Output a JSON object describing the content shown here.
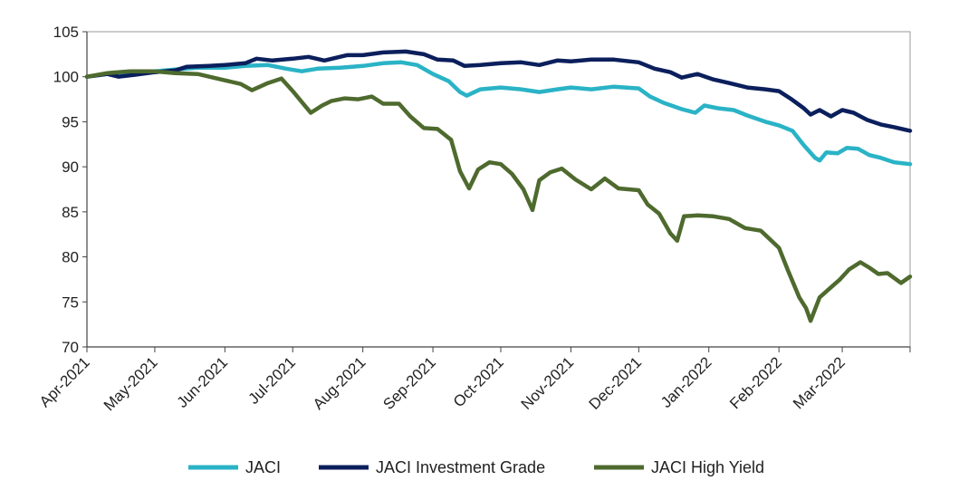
{
  "chart_data": {
    "type": "line",
    "title": "",
    "xlabel": "",
    "ylabel": "",
    "ylim": [
      70,
      105
    ],
    "yticks": [
      70,
      75,
      80,
      85,
      90,
      95,
      100,
      105
    ],
    "x_tick_labels": [
      "Apr-2021",
      "May-2021",
      "Jun-2021",
      "Jul-2021",
      "Aug-2021",
      "Sep-2021",
      "Oct-2021",
      "Nov-2021",
      "Dec-2021",
      "Jan-2022",
      "Feb-2022",
      "Mar-2022"
    ],
    "x_tick_dates": [
      "2021-04-01",
      "2021-05-01",
      "2021-06-01",
      "2021-07-01",
      "2021-08-01",
      "2021-09-01",
      "2021-10-01",
      "2021-11-01",
      "2021-12-01",
      "2022-01-01",
      "2022-02-01",
      "2022-03-01"
    ],
    "xlim": [
      "2021-04-01",
      "2022-03-31"
    ],
    "grid": false,
    "legend_position": "bottom",
    "series": [
      {
        "name": "JACI",
        "color": "#2ab3c6",
        "points": [
          [
            "2021-04-01",
            100.0
          ],
          [
            "2021-04-10",
            100.3
          ],
          [
            "2021-04-20",
            100.5
          ],
          [
            "2021-05-01",
            100.6
          ],
          [
            "2021-05-10",
            100.8
          ],
          [
            "2021-05-20",
            101.0
          ],
          [
            "2021-06-01",
            101.0
          ],
          [
            "2021-06-10",
            101.2
          ],
          [
            "2021-06-20",
            101.3
          ],
          [
            "2021-06-28",
            100.9
          ],
          [
            "2021-07-05",
            100.6
          ],
          [
            "2021-07-12",
            100.9
          ],
          [
            "2021-07-22",
            101.0
          ],
          [
            "2021-08-01",
            101.2
          ],
          [
            "2021-08-10",
            101.5
          ],
          [
            "2021-08-18",
            101.6
          ],
          [
            "2021-08-25",
            101.3
          ],
          [
            "2021-09-01",
            100.3
          ],
          [
            "2021-09-08",
            99.5
          ],
          [
            "2021-09-13",
            98.3
          ],
          [
            "2021-09-16",
            97.9
          ],
          [
            "2021-09-22",
            98.6
          ],
          [
            "2021-10-01",
            98.8
          ],
          [
            "2021-10-10",
            98.6
          ],
          [
            "2021-10-18",
            98.3
          ],
          [
            "2021-10-26",
            98.6
          ],
          [
            "2021-11-01",
            98.8
          ],
          [
            "2021-11-10",
            98.6
          ],
          [
            "2021-11-20",
            98.9
          ],
          [
            "2021-12-01",
            98.7
          ],
          [
            "2021-12-06",
            97.8
          ],
          [
            "2021-12-12",
            97.1
          ],
          [
            "2021-12-20",
            96.4
          ],
          [
            "2021-12-26",
            96.0
          ],
          [
            "2021-12-30",
            96.8
          ],
          [
            "2022-01-05",
            96.5
          ],
          [
            "2022-01-12",
            96.3
          ],
          [
            "2022-01-18",
            95.7
          ],
          [
            "2022-01-26",
            95.0
          ],
          [
            "2022-02-01",
            94.6
          ],
          [
            "2022-02-07",
            94.0
          ],
          [
            "2022-02-12",
            92.4
          ],
          [
            "2022-02-17",
            91.0
          ],
          [
            "2022-02-19",
            90.7
          ],
          [
            "2022-02-22",
            91.6
          ],
          [
            "2022-02-27",
            91.5
          ],
          [
            "2022-03-03",
            92.1
          ],
          [
            "2022-03-08",
            92.0
          ],
          [
            "2022-03-13",
            91.3
          ],
          [
            "2022-03-18",
            91.0
          ],
          [
            "2022-03-24",
            90.5
          ],
          [
            "2022-03-31",
            90.3
          ]
        ]
      },
      {
        "name": "JACI Investment Grade",
        "color": "#0b1f5c",
        "points": [
          [
            "2021-04-01",
            100.0
          ],
          [
            "2021-04-10",
            100.3
          ],
          [
            "2021-04-15",
            100.0
          ],
          [
            "2021-04-22",
            100.2
          ],
          [
            "2021-05-01",
            100.5
          ],
          [
            "2021-05-10",
            100.7
          ],
          [
            "2021-05-15",
            101.1
          ],
          [
            "2021-05-25",
            101.2
          ],
          [
            "2021-06-01",
            101.3
          ],
          [
            "2021-06-10",
            101.5
          ],
          [
            "2021-06-15",
            102.0
          ],
          [
            "2021-06-22",
            101.8
          ],
          [
            "2021-07-01",
            102.0
          ],
          [
            "2021-07-08",
            102.2
          ],
          [
            "2021-07-15",
            101.8
          ],
          [
            "2021-07-25",
            102.4
          ],
          [
            "2021-08-01",
            102.4
          ],
          [
            "2021-08-10",
            102.7
          ],
          [
            "2021-08-20",
            102.8
          ],
          [
            "2021-08-28",
            102.5
          ],
          [
            "2021-09-03",
            101.9
          ],
          [
            "2021-09-10",
            101.8
          ],
          [
            "2021-09-15",
            101.2
          ],
          [
            "2021-09-22",
            101.3
          ],
          [
            "2021-10-01",
            101.5
          ],
          [
            "2021-10-10",
            101.6
          ],
          [
            "2021-10-18",
            101.3
          ],
          [
            "2021-10-26",
            101.8
          ],
          [
            "2021-11-01",
            101.7
          ],
          [
            "2021-11-10",
            101.9
          ],
          [
            "2021-11-20",
            101.9
          ],
          [
            "2021-12-01",
            101.6
          ],
          [
            "2021-12-08",
            100.9
          ],
          [
            "2021-12-15",
            100.5
          ],
          [
            "2021-12-20",
            99.9
          ],
          [
            "2021-12-27",
            100.3
          ],
          [
            "2022-01-03",
            99.7
          ],
          [
            "2022-01-10",
            99.3
          ],
          [
            "2022-01-18",
            98.8
          ],
          [
            "2022-01-26",
            98.6
          ],
          [
            "2022-02-01",
            98.4
          ],
          [
            "2022-02-06",
            97.6
          ],
          [
            "2022-02-12",
            96.5
          ],
          [
            "2022-02-15",
            95.8
          ],
          [
            "2022-02-19",
            96.3
          ],
          [
            "2022-02-24",
            95.6
          ],
          [
            "2022-03-01",
            96.3
          ],
          [
            "2022-03-06",
            96.0
          ],
          [
            "2022-03-12",
            95.2
          ],
          [
            "2022-03-18",
            94.7
          ],
          [
            "2022-03-24",
            94.4
          ],
          [
            "2022-03-31",
            94.0
          ]
        ]
      },
      {
        "name": "JACI High Yield",
        "color": "#4e6a2e",
        "points": [
          [
            "2021-04-01",
            100.0
          ],
          [
            "2021-04-10",
            100.4
          ],
          [
            "2021-04-20",
            100.6
          ],
          [
            "2021-05-01",
            100.6
          ],
          [
            "2021-05-10",
            100.4
          ],
          [
            "2021-05-20",
            100.3
          ],
          [
            "2021-06-01",
            99.6
          ],
          [
            "2021-06-08",
            99.2
          ],
          [
            "2021-06-13",
            98.5
          ],
          [
            "2021-06-20",
            99.3
          ],
          [
            "2021-06-26",
            99.8
          ],
          [
            "2021-07-01",
            98.4
          ],
          [
            "2021-07-05",
            97.2
          ],
          [
            "2021-07-09",
            96.0
          ],
          [
            "2021-07-14",
            96.8
          ],
          [
            "2021-07-18",
            97.3
          ],
          [
            "2021-07-24",
            97.6
          ],
          [
            "2021-07-30",
            97.5
          ],
          [
            "2021-08-05",
            97.8
          ],
          [
            "2021-08-10",
            97.0
          ],
          [
            "2021-08-17",
            97.0
          ],
          [
            "2021-08-22",
            95.6
          ],
          [
            "2021-08-28",
            94.3
          ],
          [
            "2021-09-03",
            94.2
          ],
          [
            "2021-09-09",
            93.0
          ],
          [
            "2021-09-13",
            89.5
          ],
          [
            "2021-09-17",
            87.6
          ],
          [
            "2021-09-21",
            89.7
          ],
          [
            "2021-09-26",
            90.5
          ],
          [
            "2021-10-01",
            90.3
          ],
          [
            "2021-10-06",
            89.2
          ],
          [
            "2021-10-11",
            87.5
          ],
          [
            "2021-10-15",
            85.2
          ],
          [
            "2021-10-18",
            88.5
          ],
          [
            "2021-10-23",
            89.4
          ],
          [
            "2021-10-28",
            89.8
          ],
          [
            "2021-11-03",
            88.6
          ],
          [
            "2021-11-10",
            87.5
          ],
          [
            "2021-11-16",
            88.7
          ],
          [
            "2021-11-22",
            87.6
          ],
          [
            "2021-12-01",
            87.4
          ],
          [
            "2021-12-05",
            85.8
          ],
          [
            "2021-12-10",
            84.8
          ],
          [
            "2021-12-15",
            82.6
          ],
          [
            "2021-12-18",
            81.8
          ],
          [
            "2021-12-21",
            84.5
          ],
          [
            "2021-12-27",
            84.6
          ],
          [
            "2022-01-03",
            84.5
          ],
          [
            "2022-01-10",
            84.2
          ],
          [
            "2022-01-17",
            83.2
          ],
          [
            "2022-01-24",
            82.9
          ],
          [
            "2022-02-01",
            81.0
          ],
          [
            "2022-02-05",
            78.5
          ],
          [
            "2022-02-10",
            75.5
          ],
          [
            "2022-02-13",
            74.3
          ],
          [
            "2022-02-15",
            72.9
          ],
          [
            "2022-02-19",
            75.5
          ],
          [
            "2022-02-23",
            76.4
          ],
          [
            "2022-02-28",
            77.5
          ],
          [
            "2022-03-04",
            78.6
          ],
          [
            "2022-03-09",
            79.4
          ],
          [
            "2022-03-13",
            78.8
          ],
          [
            "2022-03-17",
            78.1
          ],
          [
            "2022-03-21",
            78.2
          ],
          [
            "2022-03-27",
            77.1
          ],
          [
            "2022-03-31",
            77.8
          ]
        ]
      }
    ]
  }
}
